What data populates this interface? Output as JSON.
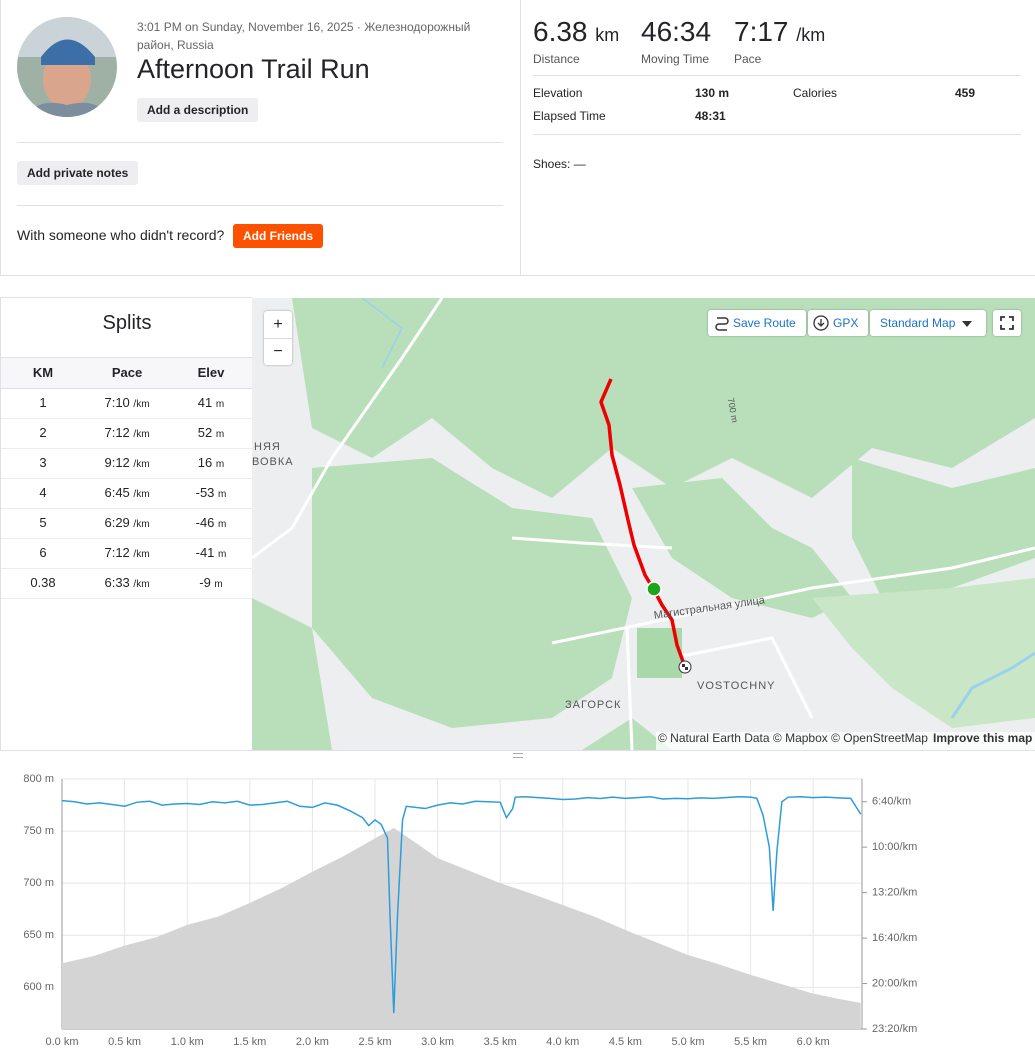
{
  "activity": {
    "timestamp": "3:01 PM on Sunday, November 16, 2025 · Железнодорожный район, Russia",
    "title": "Afternoon Trail Run",
    "add_description": "Add a description",
    "add_private_notes": "Add private notes",
    "friends_prompt": "With someone who didn't record?",
    "add_friends": "Add Friends"
  },
  "stats": {
    "primary": [
      {
        "value": "6.38",
        "unit": "km",
        "label": "Distance"
      },
      {
        "value": "46:34",
        "label": "Moving Time"
      },
      {
        "value": "7:17",
        "unit": "/km",
        "label": "Pace"
      }
    ],
    "secondary": [
      {
        "label": "Elevation",
        "value": "130 m"
      },
      {
        "label": "Calories",
        "value": "459"
      },
      {
        "label": "Elapsed Time",
        "value": "48:31"
      }
    ],
    "shoes": "Shoes: —"
  },
  "splits": {
    "title": "Splits",
    "columns": [
      "KM",
      "Pace",
      "Elev"
    ],
    "pace_unit": "/km",
    "elev_unit": "m",
    "rows": [
      [
        "1",
        "7:10",
        "41"
      ],
      [
        "2",
        "7:12",
        "52"
      ],
      [
        "3",
        "9:12",
        "16"
      ],
      [
        "4",
        "6:45",
        "-53"
      ],
      [
        "5",
        "6:29",
        "-46"
      ],
      [
        "6",
        "7:12",
        "-41"
      ],
      [
        "0.38",
        "6:33",
        "-9"
      ]
    ]
  },
  "map": {
    "controls": {
      "zoom_in": "+",
      "zoom_out": "−",
      "save_route": "Save Route",
      "gpx": "GPX",
      "map_style": "Standard Map"
    },
    "labels": [
      "Магистральная улица",
      "VOSTOCHNY",
      "ЗАГОРСК",
      "НЯЯ",
      "ВОВКА",
      "700 m"
    ],
    "attribution": "© Natural Earth Data © Mapbox © OpenStreetMap",
    "improve": "Improve this map"
  },
  "chart_data": {
    "type": "area",
    "xlim": [
      0,
      6.39
    ],
    "ylim": [
      560,
      800
    ],
    "y2lim": [
      1400,
      300
    ],
    "xticks": [
      {
        "value": 0,
        "label": "0.0 km"
      },
      {
        "value": 0.5,
        "label": "0.5 km"
      },
      {
        "value": 1,
        "label": "1.0 km"
      },
      {
        "value": 1.5,
        "label": "1.5 km"
      },
      {
        "value": 2,
        "label": "2.0 km"
      },
      {
        "value": 2.5,
        "label": "2.5 km"
      },
      {
        "value": 3,
        "label": "3.0 km"
      },
      {
        "value": 3.5,
        "label": "3.5 km"
      },
      {
        "value": 4,
        "label": "4.0 km"
      },
      {
        "value": 4.5,
        "label": "4.5 km"
      },
      {
        "value": 5,
        "label": "5.0 km"
      },
      {
        "value": 5.5,
        "label": "5.5 km"
      },
      {
        "value": 6,
        "label": "6.0 km"
      }
    ],
    "yticks": [
      {
        "value": 600,
        "label": "600 m"
      },
      {
        "value": 650,
        "label": "650 m"
      },
      {
        "value": 700,
        "label": "700 m"
      },
      {
        "value": 750,
        "label": "750 m"
      },
      {
        "value": 800,
        "label": "800 m"
      }
    ],
    "y2ticks": [
      {
        "value": 400,
        "label": "6:40/km"
      },
      {
        "value": 600,
        "label": "10:00/km"
      },
      {
        "value": 800,
        "label": "13:20/km"
      },
      {
        "value": 1000,
        "label": "16:40/km"
      },
      {
        "value": 1200,
        "label": "20:00/km"
      },
      {
        "value": 1400,
        "label": "23:20/km"
      }
    ],
    "grid": true,
    "series": [
      {
        "type": "area",
        "color": "#d4d4d4",
        "x": [
          0,
          0.25,
          0.5,
          0.75,
          1,
          1.25,
          1.5,
          1.75,
          2,
          2.25,
          2.5,
          2.65,
          2.75,
          3,
          3.25,
          3.5,
          3.75,
          4,
          4.25,
          4.5,
          4.75,
          5,
          5.25,
          5.5,
          5.75,
          6,
          6.2,
          6.38
        ],
        "values": [
          623,
          630,
          640,
          648,
          660,
          668,
          681,
          695,
          711,
          726,
          743,
          753,
          745,
          724,
          712,
          700,
          690,
          679,
          668,
          655,
          643,
          631,
          622,
          612,
          603,
          594,
          589,
          585
        ]
      },
      {
        "type": "line",
        "color": "#2d9cdb",
        "axis": "y2",
        "x": [
          0,
          0.1,
          0.2,
          0.3,
          0.4,
          0.5,
          0.6,
          0.7,
          0.8,
          0.9,
          1.0,
          1.1,
          1.2,
          1.3,
          1.4,
          1.5,
          1.6,
          1.7,
          1.8,
          1.9,
          2.0,
          2.1,
          2.2,
          2.3,
          2.4,
          2.45,
          2.5,
          2.55,
          2.6,
          2.62,
          2.65,
          2.68,
          2.72,
          2.75,
          2.9,
          3.0,
          3.1,
          3.2,
          3.3,
          3.4,
          3.5,
          3.55,
          3.6,
          3.62,
          3.7,
          3.8,
          3.9,
          4.0,
          4.1,
          4.2,
          4.3,
          4.4,
          4.5,
          4.6,
          4.7,
          4.8,
          4.9,
          5.0,
          5.1,
          5.2,
          5.3,
          5.4,
          5.5,
          5.55,
          5.6,
          5.65,
          5.68,
          5.71,
          5.75,
          5.8,
          5.9,
          6.0,
          6.1,
          6.2,
          6.3,
          6.38
        ],
        "values": [
          395,
          400,
          410,
          405,
          412,
          420,
          402,
          398,
          415,
          410,
          408,
          412,
          400,
          405,
          398,
          415,
          412,
          405,
          398,
          420,
          425,
          405,
          415,
          440,
          470,
          505,
          480,
          500,
          560,
          900,
          1330,
          900,
          480,
          420,
          430,
          415,
          405,
          410,
          398,
          400,
          402,
          470,
          430,
          380,
          378,
          382,
          385,
          390,
          388,
          382,
          386,
          380,
          385,
          382,
          378,
          388,
          385,
          387,
          383,
          385,
          382,
          378,
          380,
          385,
          460,
          600,
          880,
          620,
          400,
          380,
          378,
          382,
          380,
          383,
          385,
          455
        ]
      }
    ]
  }
}
